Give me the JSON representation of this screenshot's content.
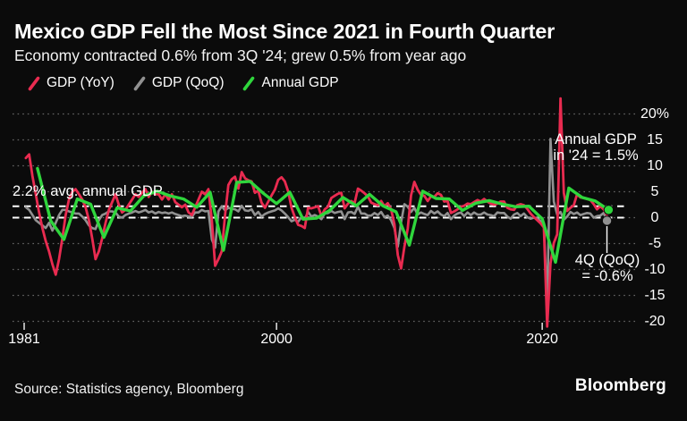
{
  "header": {
    "title": "Mexico GDP Fell the Most Since 2021 in Fourth Quarter",
    "subtitle": "Economy contracted 0.6% from 3Q '24; grew 0.5% from year ago"
  },
  "legend": {
    "items": [
      {
        "label": "GDP (YoY)",
        "color": "#e92b50"
      },
      {
        "label": "GDP (QoQ)",
        "color": "#919191"
      },
      {
        "label": "Annual GDP",
        "color": "#2fd63c"
      }
    ]
  },
  "annotations": {
    "avg_line_label": "2.2% avg. annual GDP",
    "annual_gdp_note": "Annual GDP\nin '24 = 1.5%",
    "q4_note": "4Q (QoQ)\n= -0.6%"
  },
  "footer": {
    "source": "Source: Statistics agency, Bloomberg",
    "brand": "Bloomberg"
  },
  "colors": {
    "background": "#0b0b0b",
    "red": "#e92b50",
    "gray": "#919191",
    "green": "#2fd63c",
    "grid": "#666666",
    "reference": "#ffffff",
    "text": "#ffffff"
  },
  "chart_data": {
    "type": "line",
    "title": "Mexico GDP Fell the Most Since 2021 in Fourth Quarter",
    "subtitle": "Economy contracted 0.6% from 3Q '24; grew 0.5% from year ago",
    "xlabel": "",
    "ylabel": "%",
    "x_range": [
      1981,
      2025
    ],
    "ylim": [
      -22,
      24
    ],
    "grid": true,
    "legend_position": "top-left",
    "yticks": [
      {
        "label": "20%",
        "value": 20
      },
      {
        "label": "15",
        "value": 15
      },
      {
        "label": "10",
        "value": 10
      },
      {
        "label": "5",
        "value": 5
      },
      {
        "label": "0",
        "value": 0
      },
      {
        "label": "-5",
        "value": -5
      },
      {
        "label": "-10",
        "value": -10
      },
      {
        "label": "-15",
        "value": -15
      },
      {
        "label": "-20",
        "value": -20
      }
    ],
    "xticks": [
      {
        "label": "1981",
        "year": 1981
      },
      {
        "label": "2000",
        "year": 2000
      },
      {
        "label": "2020",
        "year": 2020
      }
    ],
    "reference_lines": [
      {
        "label": "2.2% avg. annual GDP",
        "value": 2.2,
        "style": "dashed-white"
      },
      {
        "label": "zero line",
        "value": 0,
        "style": "dashed-white"
      }
    ],
    "series": [
      {
        "name": "GDP (QoQ)",
        "color": "#919191",
        "frequency": "quarterly",
        "start": "1981Q1",
        "width": 2.6,
        "values": [
          2,
          1.5,
          0.5,
          -0.5,
          -1,
          -1.5,
          -2,
          -1,
          -2.5,
          -1,
          0.5,
          1.5,
          1.5,
          1.2,
          1,
          0.8,
          0.8,
          0.2,
          -0.5,
          -1.5,
          -2,
          -2.2,
          -0.5,
          0.5,
          0.8,
          1.2,
          1.2,
          1,
          0.2,
          0,
          0.5,
          0.8,
          1,
          1.3,
          1,
          1.2,
          1.5,
          1,
          1.2,
          0.8,
          1.1,
          0.9,
          1,
          0.8,
          1,
          0.7,
          0.5,
          0.3,
          0.4,
          0.2,
          0.2,
          1,
          1,
          1.5,
          1.2,
          1.3,
          -4.2,
          -5.8,
          1.2,
          2.2,
          1.4,
          1.9,
          1.7,
          1.6,
          1.2,
          2.3,
          1.4,
          1.3,
          1.6,
          0.5,
          1.1,
          0.2,
          0.7,
          1,
          1.2,
          1.4,
          1.8,
          1.4,
          0.8,
          0.1,
          -0.7,
          -0.4,
          -0.8,
          0.1,
          -0.3,
          1.1,
          0.2,
          0.5,
          0.2,
          -0.3,
          0.8,
          0.9,
          1.3,
          0.9,
          1.1,
          1.2,
          -0.3,
          1,
          1.1,
          0.7,
          2.1,
          0.8,
          0.8,
          0.4,
          0.4,
          0.9,
          0.5,
          1.1,
          0.1,
          0.4,
          -0.5,
          -2,
          -5.6,
          -0.9,
          2.6,
          2.1,
          1.1,
          1.9,
          0.6,
          1,
          0.7,
          0.5,
          1.3,
          0.8,
          1.2,
          0.6,
          0.3,
          0.9,
          -0.3,
          0.4,
          0.8,
          1,
          0.3,
          1,
          0.5,
          1,
          0.6,
          0.6,
          1,
          0.6,
          0.5,
          0.3,
          1,
          0.9,
          0.9,
          0.2,
          -0.2,
          0.6,
          0.9,
          0.3,
          0.8,
          0.1,
          -0.2,
          0,
          -0.1,
          -0.7,
          -1.1,
          -17,
          15.2,
          3.1,
          0.6,
          1.1,
          -0.4,
          0.2,
          1.1,
          0.7,
          1,
          0.5,
          0.7,
          0.9,
          0.8,
          0,
          0.3,
          0.4,
          0.9,
          -0.6
        ]
      },
      {
        "name": "GDP (YoY)",
        "color": "#e92b50",
        "frequency": "quarterly",
        "start": "1981Q1",
        "width": 2.8,
        "values": [
          11.5,
          12.2,
          8,
          4.5,
          1,
          -2,
          -4.5,
          -6.5,
          -9,
          -11,
          -8,
          -4,
          0.5,
          3.5,
          5,
          5.5,
          4.5,
          3.5,
          2,
          -0.5,
          -4,
          -8,
          -6.5,
          -4,
          -1,
          1.5,
          3,
          4.5,
          2.5,
          1,
          1.5,
          2.5,
          3.5,
          4.5,
          4,
          4.8,
          5.5,
          4,
          5,
          4.5,
          4.5,
          3.5,
          4.5,
          3.5,
          4.5,
          3,
          2.5,
          2,
          2.5,
          1,
          0.5,
          2,
          3.5,
          5,
          4.5,
          5.5,
          -0.5,
          -9.3,
          -8,
          -6.5,
          0.5,
          6.3,
          7.4,
          7.9,
          5.6,
          8.8,
          7.6,
          7.2,
          7,
          4.8,
          5.2,
          2.9,
          1.9,
          3.1,
          4.3,
          5.4,
          7.3,
          7.8,
          7,
          5.1,
          1.9,
          0.1,
          -1.4,
          -1.6,
          -2,
          1.9,
          1.8,
          2,
          2.2,
          0.3,
          1.6,
          2.1,
          3.8,
          4.2,
          4.6,
          4.8,
          1.8,
          2.7,
          3.2,
          2.8,
          5.6,
          5.2,
          4.7,
          4.1,
          2.9,
          2.6,
          2.4,
          3.2,
          2.2,
          2.8,
          1.6,
          -1.2,
          -7.2,
          -9.8,
          -5.6,
          -2.1,
          4.3,
          6.9,
          5.4,
          4.4,
          4.2,
          3.2,
          4.1,
          4,
          4.7,
          4.4,
          3.1,
          3.2,
          0.9,
          1.2,
          1.6,
          2.1,
          2.3,
          2.7,
          2.6,
          3,
          3.4,
          3.1,
          3.6,
          3.1,
          2.7,
          2.5,
          2.7,
          3.1,
          3.1,
          1.9,
          1.6,
          1.5,
          2.4,
          2.6,
          2.4,
          1.7,
          0.8,
          0.1,
          -0.5,
          -1.1,
          -1.9,
          -21,
          -8.8,
          -4.9,
          -3.2,
          23,
          4.8,
          1.3,
          1.9,
          2.4,
          4.5,
          3.9,
          3.8,
          3.6,
          3.4,
          2.6,
          1.6,
          2.2,
          1.6,
          0.5
        ]
      },
      {
        "name": "Annual GDP",
        "color": "#2fd63c",
        "frequency": "annual",
        "start": "1981",
        "width": 3.4,
        "values": [
          9.5,
          -0.6,
          -4.2,
          3.6,
          2.6,
          -3.8,
          1.9,
          1.3,
          4.2,
          5.1,
          4.2,
          3.6,
          2,
          4.9,
          -6.3,
          6.8,
          7,
          4.7,
          2.7,
          4.9,
          -0.3,
          -0.1,
          1.4,
          3.9,
          2.3,
          4.5,
          2.3,
          1.1,
          -5.3,
          5.1,
          3.7,
          3.6,
          1.4,
          2.8,
          3.3,
          2.6,
          2.1,
          2.2,
          -0.2,
          -8.6,
          5.7,
          3.9,
          3.2,
          1.5
        ]
      }
    ],
    "end_markers": [
      {
        "series": "Annual GDP",
        "value": 1.5,
        "label": "Annual GDP in '24 = 1.5%",
        "color": "#2fd63c"
      },
      {
        "series": "GDP (QoQ)",
        "value": -0.6,
        "label": "4Q (QoQ) = -0.6%",
        "color": "#919191"
      }
    ]
  }
}
